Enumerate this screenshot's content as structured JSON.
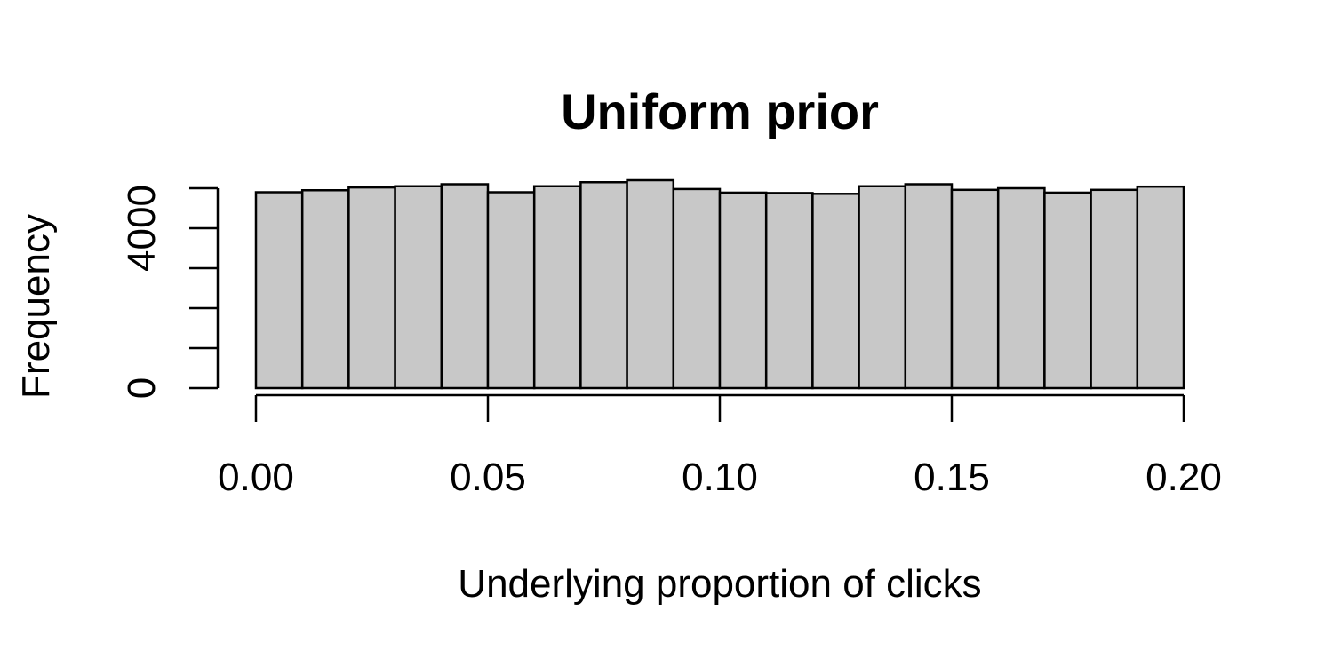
{
  "chart_data": {
    "type": "bar",
    "subtype": "histogram",
    "title": "Uniform prior",
    "xlabel": "Underlying proportion of clicks",
    "ylabel": "Frequency",
    "bin_edges": [
      0.0,
      0.01,
      0.02,
      0.03,
      0.04,
      0.05,
      0.06,
      0.07,
      0.08,
      0.09,
      0.1,
      0.11,
      0.12,
      0.13,
      0.14,
      0.15,
      0.16,
      0.17,
      0.18,
      0.19,
      0.2
    ],
    "values": [
      4900,
      4950,
      5020,
      5050,
      5100,
      4900,
      5050,
      5150,
      5200,
      4980,
      4890,
      4880,
      4860,
      5050,
      5100,
      4960,
      5000,
      4890,
      4960,
      5040
    ],
    "xlim": [
      0.0,
      0.2
    ],
    "ylim": [
      0,
      6000
    ],
    "x_ticks": [
      "0.00",
      "0.05",
      "0.10",
      "0.15",
      "0.20"
    ],
    "x_tick_values": [
      0.0,
      0.05,
      0.1,
      0.15,
      0.2
    ],
    "y_ticks": [
      "0",
      "4000"
    ],
    "y_tick_values": [
      0,
      4000
    ],
    "y_minor_ticks": [
      1000,
      2000,
      3000,
      5000
    ],
    "bar_color": "#c8c8c8",
    "grid": false,
    "legend": "none"
  }
}
